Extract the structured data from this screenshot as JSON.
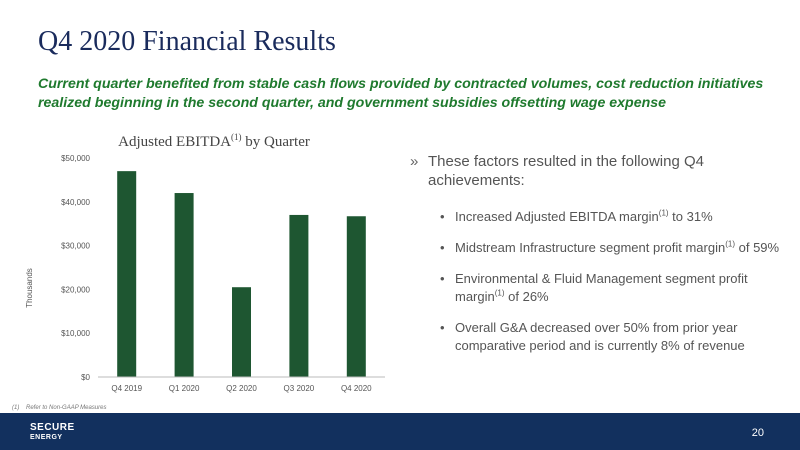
{
  "slide": {
    "title": "Q4 2020 Financial Results",
    "subtitle": "Current quarter benefited from stable cash flows provided by contracted volumes, cost reduction initiatives realized beginning in the second quarter, and government subsidies offsetting wage expense",
    "footnote_marker": "(1)",
    "footnote_text": "Refer to Non-GAAP Measures",
    "page_number": "20",
    "logo_line1": "SECURE",
    "logo_line2": "ENERGY"
  },
  "bullets": {
    "main": "These factors resulted in the following Q4 achievements:",
    "items": [
      {
        "pre": "Increased Adjusted EBITDA margin",
        "sup": "(1)",
        "post": " to 31%"
      },
      {
        "pre": "Midstream Infrastructure segment profit margin",
        "sup": "(1)",
        "post": " of 59%"
      },
      {
        "pre": "Environmental & Fluid Management segment profit margin",
        "sup": "(1)",
        "post": " of 26%"
      },
      {
        "pre": "Overall G&A decreased over 50% from prior year comparative period and is currently 8% of revenue",
        "sup": "",
        "post": ""
      }
    ]
  },
  "colors": {
    "title": "#1a2b5c",
    "subtitle": "#1f7a2e",
    "bar": "#1e5631",
    "footer": "#12305e"
  },
  "chart_data": {
    "type": "bar",
    "title": "Adjusted EBITDA",
    "title_sup": "(1)",
    "title_suffix": " by Quarter",
    "ylabel": "Thousands",
    "categories": [
      "Q4 2019",
      "Q1 2020",
      "Q2 2020",
      "Q3 2020",
      "Q4 2020"
    ],
    "values": [
      47000,
      42000,
      20500,
      37000,
      36700
    ],
    "ylim": [
      0,
      50000
    ],
    "yticks": [
      0,
      10000,
      20000,
      30000,
      40000,
      50000
    ],
    "ytick_labels": [
      "$0",
      "$10,000",
      "$20,000",
      "$30,000",
      "$40,000",
      "$50,000"
    ],
    "grid": false
  }
}
